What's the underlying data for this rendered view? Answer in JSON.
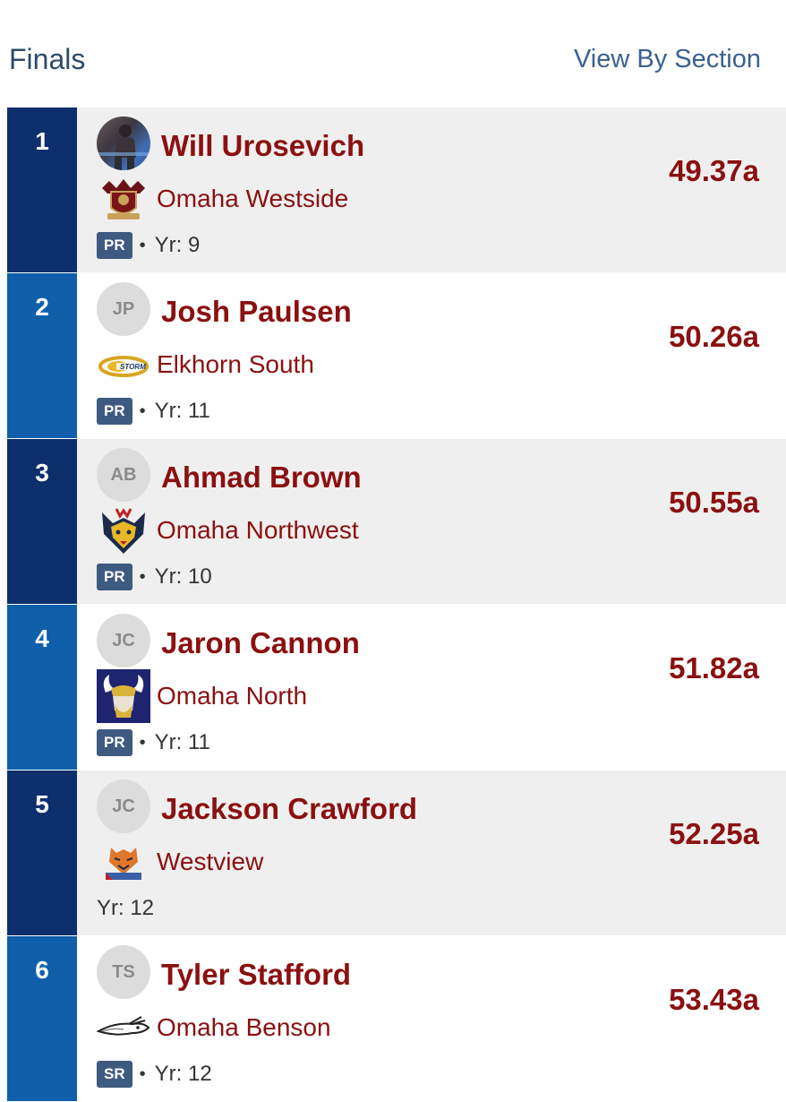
{
  "header": {
    "title": "Finals",
    "link": "View By Section"
  },
  "results": [
    {
      "place": "1",
      "initials": "",
      "name": "Will Urosevich",
      "team": "Omaha Westside",
      "team_logo": "westside-crest-icon",
      "badge": "PR",
      "year": "Yr: 9",
      "mark": "49.37a"
    },
    {
      "place": "2",
      "initials": "JP",
      "name": "Josh Paulsen",
      "team": "Elkhorn South",
      "team_logo": "storm-logo-icon",
      "badge": "PR",
      "year": "Yr: 11",
      "mark": "50.26a"
    },
    {
      "place": "3",
      "initials": "AB",
      "name": "Ahmad Brown",
      "team": "Omaha Northwest",
      "team_logo": "husky-logo-icon",
      "badge": "PR",
      "year": "Yr: 10",
      "mark": "50.55a"
    },
    {
      "place": "4",
      "initials": "JC",
      "name": "Jaron Cannon",
      "team": "Omaha North",
      "team_logo": "viking-logo-icon",
      "badge": "PR",
      "year": "Yr: 11",
      "mark": "51.82a"
    },
    {
      "place": "5",
      "initials": "JC",
      "name": "Jackson Crawford",
      "team": "Westview",
      "team_logo": "wildcat-logo-icon",
      "badge": "",
      "year": "Yr: 12",
      "mark": "52.25a"
    },
    {
      "place": "6",
      "initials": "TS",
      "name": "Tyler Stafford",
      "team": "Omaha Benson",
      "team_logo": "bunny-logo-icon",
      "badge": "SR",
      "year": "Yr: 12",
      "mark": "53.43a"
    }
  ],
  "colors": {
    "accent_text": "#8b1010",
    "place_dark": "#0d2f6b",
    "place_light": "#0f5fab",
    "badge": "#3d5a80"
  }
}
